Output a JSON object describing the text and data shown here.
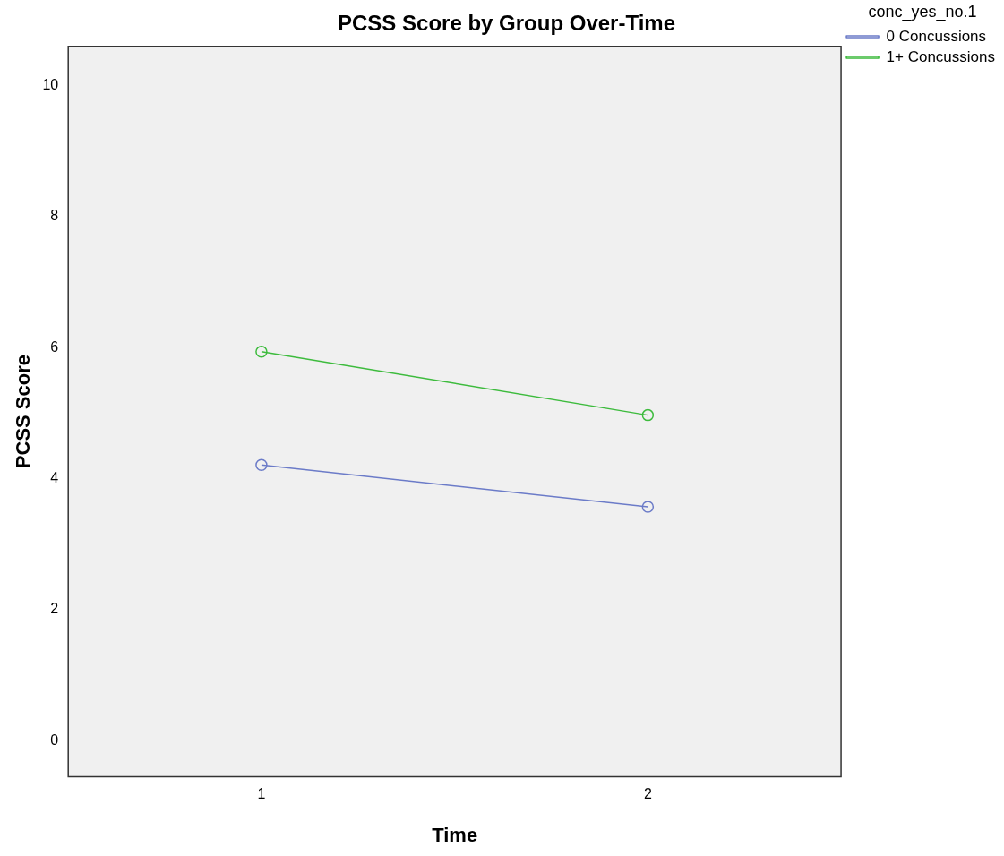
{
  "chart_data": {
    "type": "line",
    "title": "PCSS Score by Group Over-Time",
    "xlabel": "Time",
    "ylabel": "PCSS Score",
    "legend_title": "conc_yes_no.1",
    "categories": [
      "1",
      "2"
    ],
    "series": [
      {
        "name": "0 Concussions",
        "color": "#6b7bc8",
        "values": [
          4.21,
          3.57
        ]
      },
      {
        "name": "1+ Concussions",
        "color": "#3dbb3d",
        "values": [
          5.94,
          4.97
        ]
      }
    ],
    "ylim": [
      -0.55,
      10.6
    ],
    "yticks": [
      0,
      2,
      4,
      6,
      8,
      10
    ],
    "grid": false,
    "legend": "top right",
    "marker": "circle",
    "line_style": "solid"
  }
}
